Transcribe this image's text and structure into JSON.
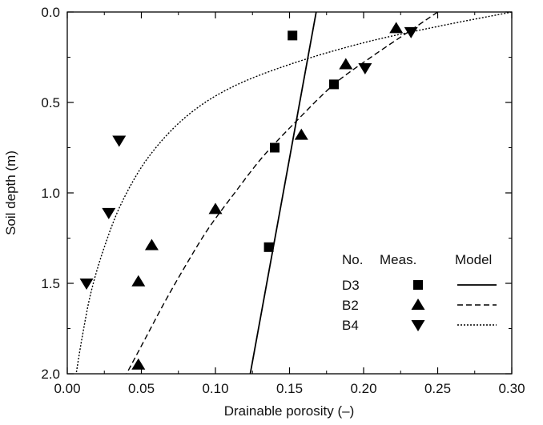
{
  "chart_data": {
    "type": "scatter",
    "xlabel": "Drainable porosity (–)",
    "ylabel": "Soil depth (m)",
    "xlim": [
      0.0,
      0.3
    ],
    "ylim": [
      0.0,
      2.0
    ],
    "y_inverted": true,
    "grid": false,
    "legend_position": "bottom-right",
    "x_ticks": [
      "0.00",
      "0.05",
      "0.10",
      "0.15",
      "0.20",
      "0.25",
      "0.30"
    ],
    "x_tick_values": [
      0.0,
      0.05,
      0.1,
      0.15,
      0.2,
      0.25,
      0.3
    ],
    "y_ticks": [
      "0.0",
      "0.5",
      "1.0",
      "1.5",
      "2.0"
    ],
    "y_tick_values": [
      0.0,
      0.5,
      1.0,
      1.5,
      2.0
    ],
    "legend": {
      "headers": [
        "No.",
        "Meas.",
        "Model"
      ],
      "entries": [
        {
          "label": "D3",
          "marker": "square",
          "line": "solid"
        },
        {
          "label": "B2",
          "marker": "triangle-up",
          "line": "dashed"
        },
        {
          "label": "B4",
          "marker": "triangle-down",
          "line": "dotted"
        }
      ]
    },
    "series": [
      {
        "name": "D3",
        "marker": "square",
        "line_style": "solid",
        "points": [
          {
            "x": 0.152,
            "y": 0.13
          },
          {
            "x": 0.18,
            "y": 0.4
          },
          {
            "x": 0.14,
            "y": 0.75
          },
          {
            "x": 0.136,
            "y": 1.3
          }
        ],
        "model": [
          {
            "x": 0.168,
            "y": 0.0
          },
          {
            "x": 0.1235,
            "y": 2.0
          }
        ]
      },
      {
        "name": "B2",
        "marker": "triangle-up",
        "line_style": "dashed",
        "points": [
          {
            "x": 0.222,
            "y": 0.09
          },
          {
            "x": 0.188,
            "y": 0.29
          },
          {
            "x": 0.158,
            "y": 0.68
          },
          {
            "x": 0.1,
            "y": 1.09
          },
          {
            "x": 0.057,
            "y": 1.29
          },
          {
            "x": 0.048,
            "y": 1.49
          },
          {
            "x": 0.048,
            "y": 1.95
          }
        ],
        "model": [
          {
            "x": 0.25,
            "y": 0.0
          },
          {
            "x": 0.232,
            "y": 0.1
          },
          {
            "x": 0.205,
            "y": 0.25
          },
          {
            "x": 0.18,
            "y": 0.4
          },
          {
            "x": 0.155,
            "y": 0.6
          },
          {
            "x": 0.132,
            "y": 0.8
          },
          {
            "x": 0.113,
            "y": 1.0
          },
          {
            "x": 0.095,
            "y": 1.2
          },
          {
            "x": 0.08,
            "y": 1.4
          },
          {
            "x": 0.066,
            "y": 1.6
          },
          {
            "x": 0.053,
            "y": 1.8
          },
          {
            "x": 0.04,
            "y": 2.0
          }
        ]
      },
      {
        "name": "B4",
        "marker": "triangle-down",
        "line_style": "dotted",
        "points": [
          {
            "x": 0.232,
            "y": 0.11
          },
          {
            "x": 0.201,
            "y": 0.31
          },
          {
            "x": 0.035,
            "y": 0.71
          },
          {
            "x": 0.028,
            "y": 1.11
          },
          {
            "x": 0.013,
            "y": 1.5
          }
        ],
        "model": [
          {
            "x": 0.3,
            "y": 0.0
          },
          {
            "x": 0.25,
            "y": 0.08
          },
          {
            "x": 0.2,
            "y": 0.17
          },
          {
            "x": 0.15,
            "y": 0.29
          },
          {
            "x": 0.11,
            "y": 0.42
          },
          {
            "x": 0.08,
            "y": 0.58
          },
          {
            "x": 0.055,
            "y": 0.8
          },
          {
            "x": 0.037,
            "y": 1.05
          },
          {
            "x": 0.025,
            "y": 1.3
          },
          {
            "x": 0.016,
            "y": 1.55
          },
          {
            "x": 0.01,
            "y": 1.8
          },
          {
            "x": 0.006,
            "y": 2.0
          }
        ]
      }
    ]
  }
}
